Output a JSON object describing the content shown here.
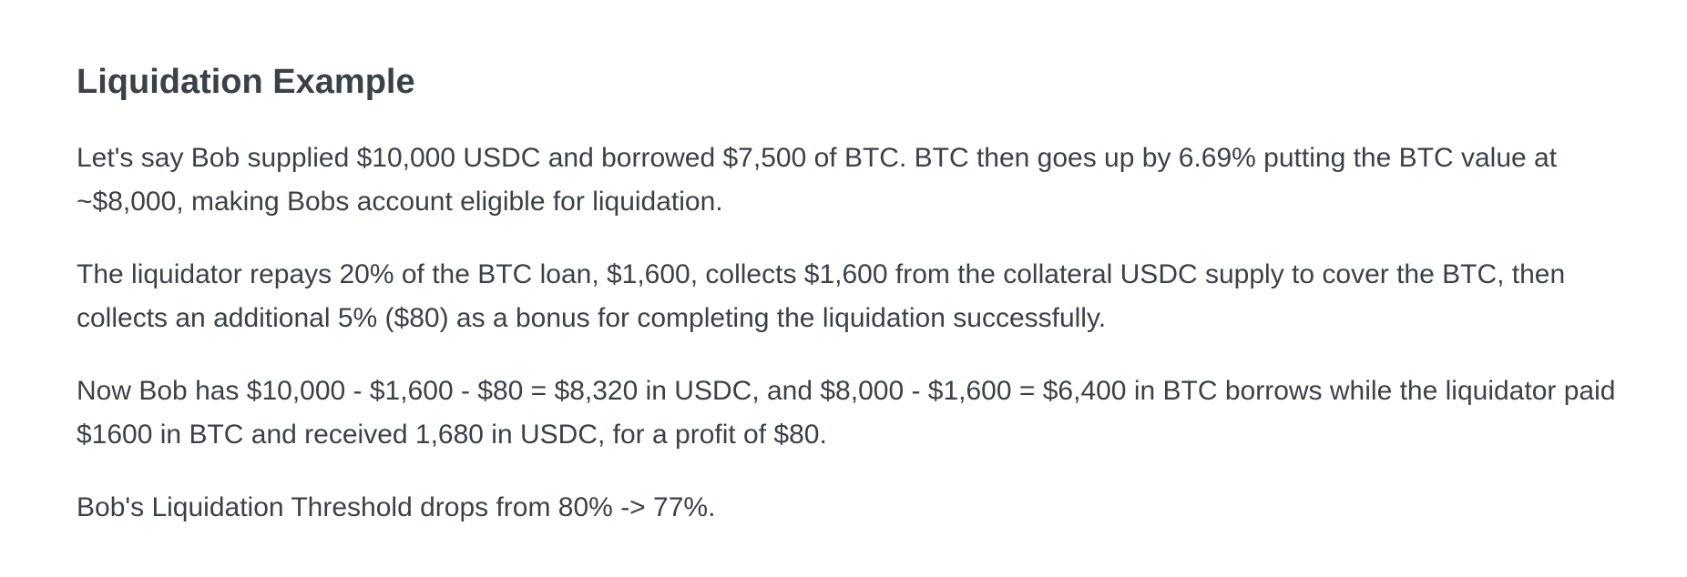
{
  "section": {
    "title": "Liquidation Example",
    "paragraphs": [
      "Let's say Bob supplied $10,000 USDC and borrowed $7,500 of BTC. BTC then goes up by 6.69% putting the BTC value at ~$8,000, making Bobs account eligible for liquidation.",
      "The liquidator repays 20% of the BTC loan, $1,600, collects $1,600 from the collateral USDC supply to cover the BTC, then collects an additional 5% ($80) as a bonus for completing the liquidation successfully.",
      "Now Bob has $10,000 - $1,600 - $80 = $8,320 in USDC, and $8,000 - $1,600 = $6,400 in BTC borrows while the liquidator paid $1600 in BTC and received 1,680 in USDC, for a profit of $80.",
      "Bob's Liquidation Threshold drops from 80% -> 77%."
    ]
  }
}
